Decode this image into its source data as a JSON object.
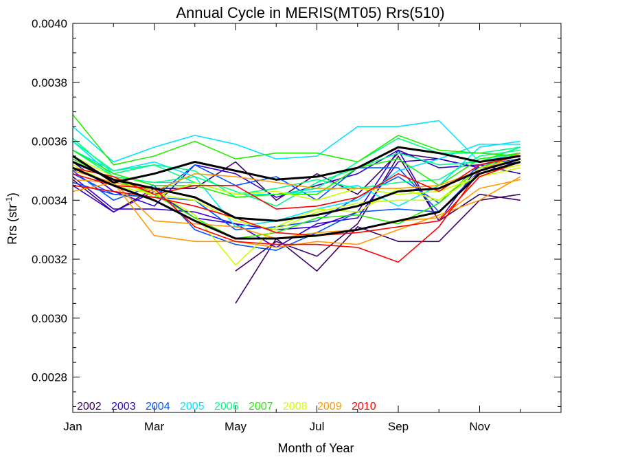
{
  "chart_data": {
    "type": "line",
    "title": "Annual Cycle in MERIS(MT05) Rrs(510)",
    "xlabel": "Month of Year",
    "ylabel": "Rrs (str",
    "ylabel_sup": "-1",
    "ylabel_close": ")",
    "xlim": [
      1,
      13
    ],
    "ylim": [
      0.00268,
      0.004
    ],
    "x_ticks": [
      {
        "value": 1,
        "label": "Jan"
      },
      {
        "value": 3,
        "label": "Mar"
      },
      {
        "value": 5,
        "label": "May"
      },
      {
        "value": 7,
        "label": "Jul"
      },
      {
        "value": 9,
        "label": "Sep"
      },
      {
        "value": 11,
        "label": "Nov"
      }
    ],
    "y_ticks": [
      {
        "value": 0.0028,
        "label": "0.0028"
      },
      {
        "value": 0.003,
        "label": "0.0030"
      },
      {
        "value": 0.0032,
        "label": "0.0032"
      },
      {
        "value": 0.0034,
        "label": "0.0034"
      },
      {
        "value": 0.0036,
        "label": "0.0036"
      },
      {
        "value": 0.0038,
        "label": "0.0038"
      },
      {
        "value": 0.004,
        "label": "0.0040"
      }
    ],
    "grid": false,
    "legend_position": "bottom-left",
    "x": [
      1,
      2,
      3,
      4,
      5,
      6,
      7,
      8,
      9,
      10,
      11,
      12
    ],
    "legend": [
      {
        "name": "2002",
        "color": "#3d0066"
      },
      {
        "name": "2003",
        "color": "#3300cc"
      },
      {
        "name": "2004",
        "color": "#0055ff"
      },
      {
        "name": "2005",
        "color": "#00e5ff"
      },
      {
        "name": "2006",
        "color": "#00ff88"
      },
      {
        "name": "2007",
        "color": "#22ee00"
      },
      {
        "name": "2008",
        "color": "#ccff00"
      },
      {
        "name": "2009",
        "color": "#ff9900"
      },
      {
        "name": "2010",
        "color": "#ff0000"
      }
    ],
    "series": [
      {
        "color": "#3d0066",
        "values": [
          null,
          null,
          null,
          null,
          0.00305,
          0.00327,
          0.00316,
          0.00331,
          0.00326,
          0.00326,
          0.0034,
          0.00342
        ]
      },
      {
        "color": "#3d0066",
        "values": [
          null,
          null,
          null,
          null,
          0.00316,
          0.00326,
          0.00321,
          0.00332,
          0.00355,
          0.00333,
          0.00342,
          0.0034
        ]
      },
      {
        "color": "#3d0066",
        "values": [
          0.00347,
          0.00336,
          0.00344,
          0.00344,
          0.00353,
          0.0034,
          0.00349,
          0.00342,
          0.00356,
          0.00354,
          0.00351,
          0.00356
        ]
      },
      {
        "color": "#3300cc",
        "values": [
          0.00348,
          0.00337,
          0.00337,
          0.00336,
          0.00332,
          0.00324,
          0.00332,
          0.00334,
          0.00353,
          0.00354,
          0.00351,
          0.00353
        ]
      },
      {
        "color": "#3300cc",
        "values": [
          0.00345,
          0.00336,
          0.00343,
          0.00334,
          0.00332,
          0.0033,
          0.00331,
          0.00336,
          0.00357,
          0.00333,
          0.00352,
          0.00355
        ]
      },
      {
        "color": "#3300cc",
        "values": [
          0.00353,
          0.00343,
          0.00338,
          0.00352,
          0.00349,
          0.00341,
          0.00345,
          0.00349,
          0.00357,
          0.00351,
          0.00352,
          0.00349
        ]
      },
      {
        "color": "#0055ff",
        "values": [
          0.00349,
          0.00342,
          0.00341,
          0.00352,
          0.00345,
          0.00348,
          0.0034,
          0.00351,
          0.00351,
          0.00336,
          0.00349,
          0.00353
        ]
      },
      {
        "color": "#0055ff",
        "values": [
          0.0035,
          0.0034,
          0.00345,
          0.0033,
          0.00325,
          0.00323,
          0.00329,
          0.00336,
          0.00337,
          0.00336,
          0.0035,
          0.00356
        ]
      },
      {
        "color": "#0055ff",
        "values": [
          0.00346,
          0.00342,
          0.00341,
          0.0034,
          0.0033,
          0.00331,
          0.00333,
          0.00341,
          0.00348,
          0.00339,
          0.00352,
          0.00354
        ]
      },
      {
        "color": "#00e5ff",
        "values": [
          0.00365,
          0.00353,
          0.00358,
          0.00362,
          0.00359,
          0.00354,
          0.00355,
          0.00365,
          0.00365,
          0.00367,
          0.00353,
          0.00356
        ]
      },
      {
        "color": "#00e5ff",
        "values": [
          0.0036,
          0.00348,
          0.00346,
          0.00346,
          0.00342,
          0.00342,
          0.00343,
          0.00345,
          0.00338,
          0.00345,
          0.00358,
          0.0036
        ]
      },
      {
        "color": "#00e5ff",
        "values": [
          0.00357,
          0.0035,
          0.00353,
          0.00348,
          0.00331,
          0.00333,
          0.00337,
          0.0034,
          0.0035,
          0.00354,
          0.00359,
          0.00359
        ]
      },
      {
        "color": "#00ff88",
        "values": [
          0.0036,
          0.0035,
          0.00352,
          0.0035,
          0.00341,
          0.00342,
          0.00344,
          0.00353,
          0.00361,
          0.00356,
          0.00356,
          0.00358
        ]
      },
      {
        "color": "#00ff88",
        "values": [
          0.00361,
          0.00349,
          0.00352,
          0.00346,
          0.00342,
          0.00344,
          0.00347,
          0.00344,
          0.00346,
          0.00347,
          0.00355,
          0.00357
        ]
      },
      {
        "color": "#00ff88",
        "values": [
          0.00357,
          0.00348,
          0.00346,
          0.00348,
          0.00343,
          0.00338,
          0.00346,
          0.00351,
          0.00356,
          0.00352,
          0.00353,
          0.00358
        ]
      },
      {
        "color": "#22ee00",
        "values": [
          0.00369,
          0.00352,
          0.00355,
          0.0036,
          0.00354,
          0.00356,
          0.00356,
          0.00353,
          0.00362,
          0.00357,
          0.00356,
          0.00355
        ]
      },
      {
        "color": "#22ee00",
        "values": [
          0.00357,
          0.00349,
          0.00345,
          0.00345,
          0.00341,
          0.00342,
          0.00342,
          0.00351,
          0.00354,
          0.00345,
          0.00354,
          0.00356
        ]
      },
      {
        "color": "#22ee00",
        "values": [
          0.00354,
          0.00347,
          0.00342,
          0.00334,
          0.00327,
          0.00329,
          0.00334,
          0.00335,
          0.00332,
          0.00339,
          0.00351,
          0.00356
        ]
      },
      {
        "color": "#ccff00",
        "values": [
          0.00355,
          0.00348,
          0.00343,
          0.00335,
          0.00318,
          0.00331,
          0.00337,
          0.00336,
          0.00344,
          0.0034,
          0.00351,
          0.00354
        ]
      },
      {
        "color": "#ccff00",
        "values": [
          0.00351,
          0.00348,
          0.00341,
          0.00346,
          0.00342,
          0.00343,
          0.0034,
          0.00344,
          0.00342,
          0.00343,
          0.00348,
          0.00351
        ]
      },
      {
        "color": "#ccff00",
        "values": [
          0.00352,
          0.00345,
          0.00342,
          0.0034,
          0.00333,
          0.0033,
          0.00336,
          0.00339,
          0.0034,
          0.0034,
          0.00349,
          0.00352
        ]
      },
      {
        "color": "#ff9900",
        "values": [
          0.00343,
          0.00346,
          0.00328,
          0.00326,
          0.00326,
          0.00324,
          0.00326,
          0.00325,
          0.0033,
          0.00335,
          0.0034,
          0.00348
        ]
      },
      {
        "color": "#ff9900",
        "values": [
          0.00347,
          0.00346,
          0.00333,
          0.00332,
          0.00331,
          0.00327,
          0.00329,
          0.0033,
          0.00333,
          0.00334,
          0.00344,
          0.00347
        ]
      },
      {
        "color": "#ff9900",
        "values": [
          0.0035,
          0.00346,
          0.00343,
          0.00349,
          0.00348,
          0.00346,
          0.00344,
          0.00344,
          0.00344,
          0.00345,
          0.0035,
          0.00356
        ]
      },
      {
        "color": "#ff0000",
        "values": [
          0.00351,
          0.00348,
          0.00342,
          0.00345,
          0.00345,
          0.00337,
          0.00338,
          0.00341,
          0.00349,
          0.00343,
          0.00352,
          0.00355
        ]
      },
      {
        "color": "#ff0000",
        "values": [
          0.00349,
          0.00345,
          0.00344,
          0.00331,
          0.00326,
          0.00325,
          0.00325,
          0.00324,
          0.00319,
          0.00331,
          0.0035,
          0.00354
        ]
      },
      {
        "color": "#ff0000",
        "values": [
          0.00345,
          0.00343,
          0.00341,
          0.00338,
          0.00334,
          0.00329,
          0.00328,
          0.00329,
          0.00331,
          0.00333,
          0.00348,
          0.00353
        ]
      },
      {
        "color": "#000000",
        "values": [
          0.00355,
          0.00346,
          0.00349,
          0.00353,
          0.0035,
          0.00347,
          0.00348,
          0.00351,
          0.00358,
          0.00356,
          0.00353,
          0.00355
        ]
      },
      {
        "color": "#000000",
        "values": [
          0.00353,
          0.00347,
          0.00344,
          0.00341,
          0.00334,
          0.00333,
          0.00335,
          0.00338,
          0.00343,
          0.00344,
          0.0035,
          0.00354
        ]
      },
      {
        "color": "#000000",
        "values": [
          0.00351,
          0.00345,
          0.0034,
          0.00333,
          0.00327,
          0.00327,
          0.00328,
          0.0033,
          0.00333,
          0.00336,
          0.00349,
          0.00353
        ]
      }
    ]
  }
}
